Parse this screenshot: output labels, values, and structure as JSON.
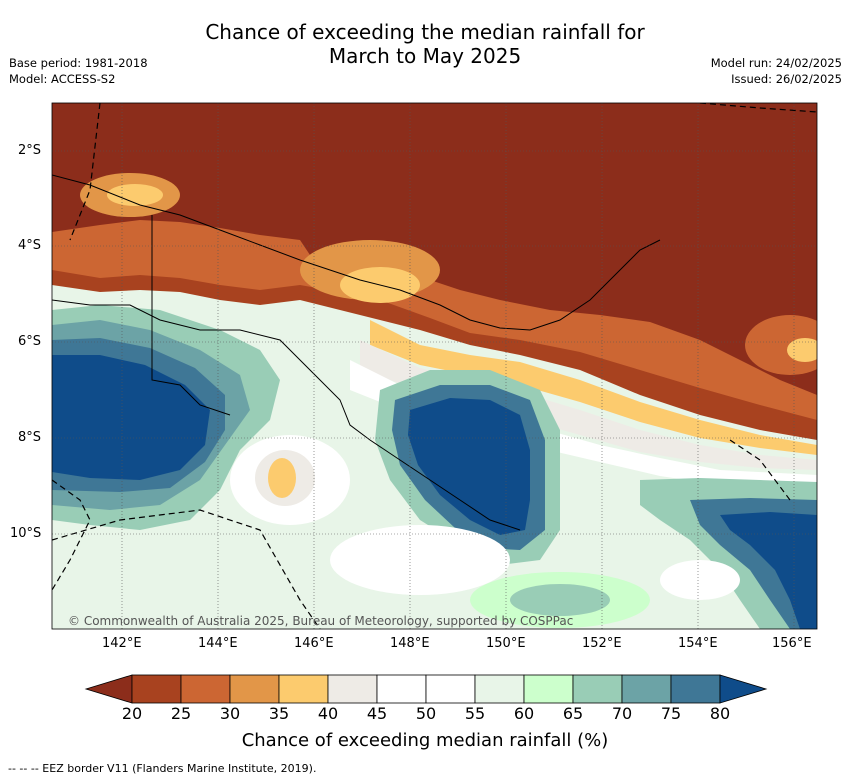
{
  "title": {
    "line1": "Chance of exceeding the median rainfall for",
    "line2": "March to May 2025"
  },
  "meta_left": {
    "base_period": "Base period: 1981-2018",
    "model": "Model: ACCESS-S2"
  },
  "meta_right": {
    "model_run": "Model run: 24/02/2025",
    "issued": "Issued: 26/02/2025"
  },
  "map": {
    "lat_labels": [
      "2°S",
      "4°S",
      "6°S",
      "8°S",
      "10°S"
    ],
    "lon_labels": [
      "142°E",
      "144°E",
      "146°E",
      "148°E",
      "150°E",
      "152°E",
      "154°E",
      "156°E"
    ],
    "credit": "© Commonwealth of Australia 2025, Bureau of Meteorology, supported by COSPPac",
    "colors": {
      "c20": "#8c2d1b",
      "c25": "#a8421f",
      "c30": "#cc6633",
      "c35": "#e29648",
      "c40": "#fccb6e",
      "c45": "#eeebe6",
      "c50": "#ffffff",
      "c55": "#ffffff",
      "c60": "#e8f5e8",
      "c65": "#ccffcc",
      "c70": "#99cdb6",
      "c75": "#6ca3a6",
      "c80": "#3f7796",
      "c85": "#0f4c8a"
    }
  },
  "colorbar": {
    "ticks": [
      "20",
      "25",
      "30",
      "35",
      "40",
      "45",
      "50",
      "55",
      "60",
      "65",
      "70",
      "75",
      "80"
    ],
    "title": "Chance of exceeding median rainfall (%)"
  },
  "footnote": "--  --  -- EEZ border V11 (Flanders Marine Institute, 2019)."
}
